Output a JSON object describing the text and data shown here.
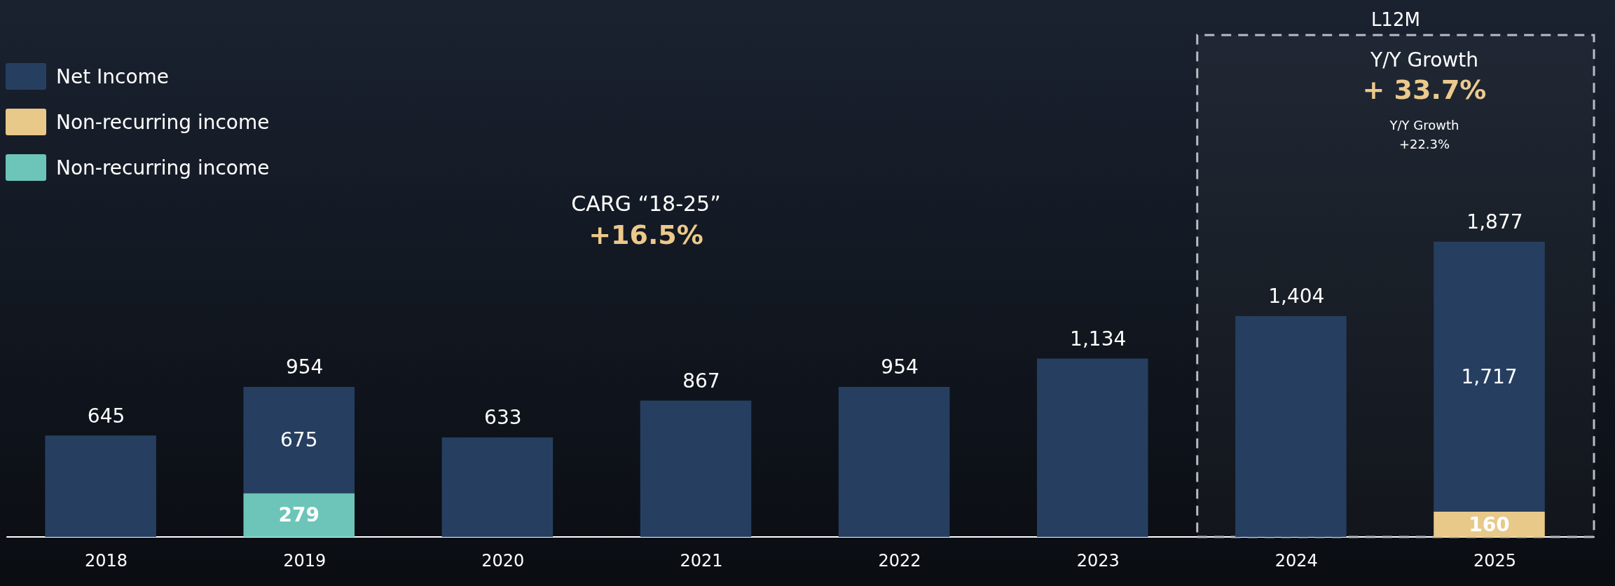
{
  "chart_data": {
    "type": "bar",
    "stacked": true,
    "categories": [
      "2018",
      "2019",
      "2020",
      "2021",
      "2022",
      "2023",
      "2024",
      "2025"
    ],
    "series": [
      {
        "name": "Non-recurring income",
        "color": "#6cc5b8",
        "values": [
          null,
          279,
          null,
          null,
          null,
          null,
          null,
          null
        ],
        "value_labels": [
          null,
          "279",
          null,
          null,
          null,
          null,
          null,
          null
        ]
      },
      {
        "name": "Non-recurring income",
        "color": "#e8c98a",
        "values": [
          null,
          null,
          null,
          null,
          null,
          null,
          null,
          160
        ],
        "value_labels": [
          null,
          null,
          null,
          null,
          null,
          null,
          null,
          "160"
        ]
      },
      {
        "name": "Net Income",
        "color": "#263f61",
        "values": [
          645,
          675,
          633,
          867,
          954,
          1134,
          1404,
          1717
        ],
        "value_labels": [
          null,
          "675",
          null,
          null,
          null,
          null,
          null,
          "1,717"
        ]
      }
    ],
    "totals": [
      "645",
      "954",
      "633",
      "867",
      "954",
      "1,134",
      "1,404",
      "1,877"
    ],
    "legend": "top left",
    "tick_labels": "x",
    "bands": [
      {
        "axis": "x",
        "from": "2024",
        "to": "2025",
        "label": "L12M"
      }
    ],
    "annotations": [
      "CARG “18-25”",
      "+16.5%",
      "Y/Y Growth",
      "+ 33.7%",
      "Y/Y Growth",
      "+22.3%"
    ]
  }
}
